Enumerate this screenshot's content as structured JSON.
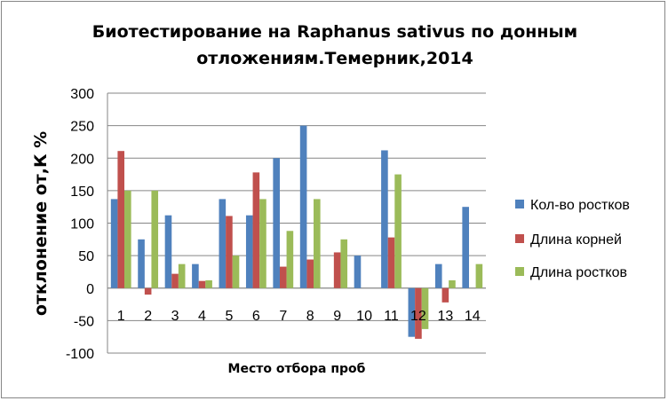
{
  "chart_data": {
    "type": "bar",
    "title_line1": "Биотестирование на Raphanus sativus по донным",
    "title_line2": "отложениям.Темерник,2014",
    "xlabel": "Место отбора проб",
    "ylabel": "отклонение от,К %",
    "ylim": [
      -100,
      300
    ],
    "yticks": [
      300,
      250,
      200,
      150,
      100,
      50,
      0,
      -50,
      -100
    ],
    "grid": true,
    "legend_position": "right",
    "categories": [
      "1",
      "2",
      "3",
      "4",
      "5",
      "6",
      "7",
      "8",
      "9",
      "10",
      "11",
      "12",
      "13",
      "14"
    ],
    "series": [
      {
        "name": "Кол-во ростков",
        "color": "#4F81BD",
        "values": [
          137,
          75,
          112,
          37,
          137,
          112,
          200,
          250,
          null,
          50,
          212,
          -75,
          37,
          125
        ]
      },
      {
        "name": "Длина корней",
        "color": "#C0504D",
        "values": [
          211,
          -10,
          22,
          11,
          111,
          178,
          33,
          44,
          55,
          null,
          78,
          -78,
          -22,
          null
        ]
      },
      {
        "name": "Длина ростков",
        "color": "#9BBB59",
        "values": [
          150,
          150,
          37,
          12,
          50,
          137,
          88,
          137,
          75,
          null,
          175,
          -63,
          12,
          37
        ]
      }
    ]
  }
}
